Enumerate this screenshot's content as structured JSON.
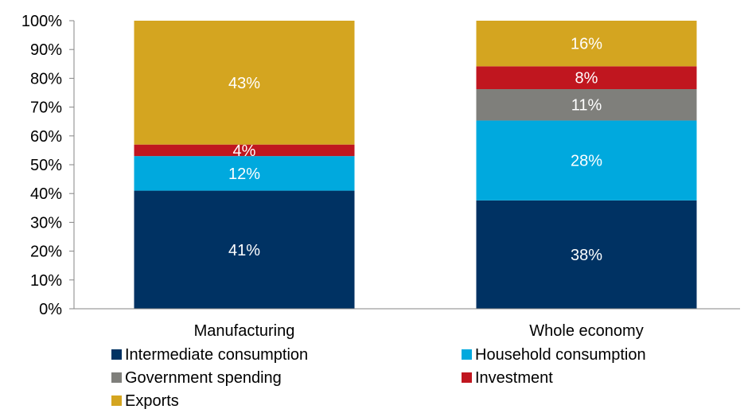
{
  "chart_data": {
    "type": "bar",
    "stacked": true,
    "categories": [
      "Manufacturing",
      "Whole economy"
    ],
    "series": [
      {
        "name": "Intermediate consumption",
        "color": "#003263",
        "values": [
          41,
          38
        ],
        "labels": [
          "41%",
          "38%"
        ]
      },
      {
        "name": "Household consumption",
        "color": "#00a9de",
        "values": [
          12,
          28
        ],
        "labels": [
          "12%",
          "28%"
        ]
      },
      {
        "name": "Government spending",
        "color": "#7f7f7b",
        "values": [
          0,
          11
        ],
        "labels": [
          "",
          "11%"
        ]
      },
      {
        "name": "Investment",
        "color": "#c0161f",
        "values": [
          4,
          8
        ],
        "labels": [
          "4%",
          "8%"
        ]
      },
      {
        "name": "Exports",
        "color": "#d4a520",
        "values": [
          43,
          16
        ],
        "labels": [
          "43%",
          "16%"
        ]
      }
    ],
    "ylim": [
      0,
      100
    ],
    "yticks": [
      "0%",
      "10%",
      "20%",
      "30%",
      "40%",
      "50%",
      "60%",
      "70%",
      "80%",
      "90%",
      "100%"
    ],
    "xlabel": "",
    "ylabel": "",
    "title": "",
    "grid": false,
    "legend_position": "bottom"
  }
}
